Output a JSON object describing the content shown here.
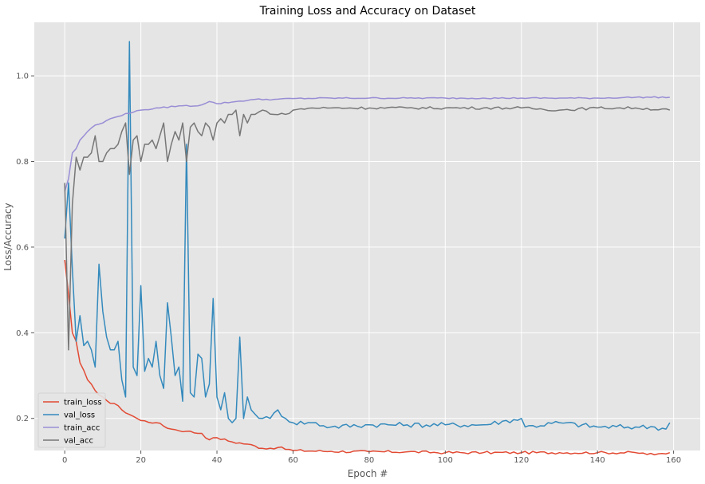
{
  "chart_data": {
    "type": "line",
    "title": "Training Loss and Accuracy on Dataset",
    "xlabel": "Epoch #",
    "ylabel": "Loss/Accuracy",
    "xlim": [
      -8,
      167
    ],
    "ylim": [
      0.125,
      1.125
    ],
    "xticks": [
      0,
      20,
      40,
      60,
      80,
      100,
      120,
      140,
      160
    ],
    "yticks": [
      0.2,
      0.4,
      0.6,
      0.8,
      1.0
    ],
    "xtick_labels": [
      "0",
      "20",
      "40",
      "60",
      "80",
      "100",
      "120",
      "140",
      "160"
    ],
    "ytick_labels": [
      "0.2",
      "0.4",
      "0.6",
      "0.8",
      "1.0"
    ],
    "grid": true,
    "legend_position": "lower-left",
    "background": "#e5e5e5",
    "series": [
      {
        "name": "train_loss",
        "color": "#e24a33",
        "keypoints": [
          [
            0,
            0.57
          ],
          [
            1,
            0.49
          ],
          [
            2,
            0.4
          ],
          [
            3,
            0.38
          ],
          [
            4,
            0.33
          ],
          [
            6,
            0.29
          ],
          [
            8,
            0.265
          ],
          [
            10,
            0.25
          ],
          [
            12,
            0.235
          ],
          [
            14,
            0.23
          ],
          [
            15,
            0.22
          ],
          [
            18,
            0.205
          ],
          [
            20,
            0.195
          ],
          [
            24,
            0.19
          ],
          [
            28,
            0.175
          ],
          [
            32,
            0.17
          ],
          [
            36,
            0.165
          ],
          [
            38,
            0.15
          ],
          [
            40,
            0.155
          ],
          [
            44,
            0.145
          ],
          [
            48,
            0.14
          ],
          [
            52,
            0.13
          ],
          [
            56,
            0.132
          ],
          [
            60,
            0.125
          ],
          [
            70,
            0.123
          ],
          [
            80,
            0.122
          ],
          [
            90,
            0.122
          ],
          [
            100,
            0.12
          ],
          [
            110,
            0.12
          ],
          [
            120,
            0.12
          ],
          [
            130,
            0.12
          ],
          [
            140,
            0.12
          ],
          [
            150,
            0.12
          ],
          [
            155,
            0.115
          ],
          [
            159,
            0.12
          ]
        ]
      },
      {
        "name": "val_loss",
        "color": "#348abd",
        "keypoints": [
          [
            0,
            0.62
          ],
          [
            1,
            0.75
          ],
          [
            2,
            0.55
          ],
          [
            3,
            0.38
          ],
          [
            4,
            0.44
          ],
          [
            5,
            0.37
          ],
          [
            6,
            0.38
          ],
          [
            7,
            0.36
          ],
          [
            8,
            0.32
          ],
          [
            9,
            0.56
          ],
          [
            10,
            0.45
          ],
          [
            11,
            0.39
          ],
          [
            12,
            0.36
          ],
          [
            13,
            0.36
          ],
          [
            14,
            0.38
          ],
          [
            15,
            0.29
          ],
          [
            16,
            0.25
          ],
          [
            17,
            1.08
          ],
          [
            18,
            0.32
          ],
          [
            19,
            0.3
          ],
          [
            20,
            0.51
          ],
          [
            21,
            0.31
          ],
          [
            22,
            0.34
          ],
          [
            23,
            0.32
          ],
          [
            24,
            0.38
          ],
          [
            25,
            0.3
          ],
          [
            26,
            0.27
          ],
          [
            27,
            0.47
          ],
          [
            28,
            0.39
          ],
          [
            29,
            0.3
          ],
          [
            30,
            0.32
          ],
          [
            31,
            0.24
          ],
          [
            32,
            0.84
          ],
          [
            33,
            0.26
          ],
          [
            34,
            0.25
          ],
          [
            35,
            0.35
          ],
          [
            36,
            0.34
          ],
          [
            37,
            0.25
          ],
          [
            38,
            0.28
          ],
          [
            39,
            0.48
          ],
          [
            40,
            0.25
          ],
          [
            41,
            0.22
          ],
          [
            42,
            0.26
          ],
          [
            43,
            0.2
          ],
          [
            44,
            0.19
          ],
          [
            45,
            0.2
          ],
          [
            46,
            0.39
          ],
          [
            47,
            0.2
          ],
          [
            48,
            0.25
          ],
          [
            49,
            0.22
          ],
          [
            50,
            0.21
          ],
          [
            52,
            0.2
          ],
          [
            54,
            0.2
          ],
          [
            56,
            0.22
          ],
          [
            58,
            0.2
          ],
          [
            60,
            0.19
          ],
          [
            65,
            0.19
          ],
          [
            70,
            0.18
          ],
          [
            80,
            0.185
          ],
          [
            90,
            0.185
          ],
          [
            100,
            0.185
          ],
          [
            110,
            0.185
          ],
          [
            120,
            0.2
          ],
          [
            121,
            0.18
          ],
          [
            130,
            0.19
          ],
          [
            140,
            0.18
          ],
          [
            150,
            0.18
          ],
          [
            155,
            0.18
          ],
          [
            158,
            0.175
          ],
          [
            159,
            0.19
          ]
        ]
      },
      {
        "name": "train_acc",
        "color": "#988ed5",
        "keypoints": [
          [
            0,
            0.73
          ],
          [
            1,
            0.76
          ],
          [
            2,
            0.82
          ],
          [
            3,
            0.83
          ],
          [
            4,
            0.85
          ],
          [
            6,
            0.87
          ],
          [
            8,
            0.885
          ],
          [
            10,
            0.89
          ],
          [
            12,
            0.9
          ],
          [
            14,
            0.905
          ],
          [
            16,
            0.912
          ],
          [
            18,
            0.915
          ],
          [
            20,
            0.92
          ],
          [
            25,
            0.925
          ],
          [
            30,
            0.93
          ],
          [
            35,
            0.93
          ],
          [
            38,
            0.94
          ],
          [
            40,
            0.935
          ],
          [
            45,
            0.94
          ],
          [
            50,
            0.945
          ],
          [
            55,
            0.945
          ],
          [
            60,
            0.947
          ],
          [
            70,
            0.948
          ],
          [
            80,
            0.948
          ],
          [
            90,
            0.948
          ],
          [
            100,
            0.948
          ],
          [
            110,
            0.948
          ],
          [
            120,
            0.948
          ],
          [
            130,
            0.948
          ],
          [
            140,
            0.948
          ],
          [
            150,
            0.95
          ],
          [
            159,
            0.95
          ]
        ]
      },
      {
        "name": "val_acc",
        "color": "#777777",
        "keypoints": [
          [
            0,
            0.75
          ],
          [
            1,
            0.36
          ],
          [
            2,
            0.7
          ],
          [
            3,
            0.81
          ],
          [
            4,
            0.78
          ],
          [
            5,
            0.81
          ],
          [
            6,
            0.81
          ],
          [
            7,
            0.82
          ],
          [
            8,
            0.86
          ],
          [
            9,
            0.8
          ],
          [
            10,
            0.8
          ],
          [
            11,
            0.82
          ],
          [
            12,
            0.83
          ],
          [
            13,
            0.83
          ],
          [
            14,
            0.84
          ],
          [
            15,
            0.87
          ],
          [
            16,
            0.89
          ],
          [
            17,
            0.77
          ],
          [
            18,
            0.85
          ],
          [
            19,
            0.86
          ],
          [
            20,
            0.8
          ],
          [
            21,
            0.84
          ],
          [
            22,
            0.84
          ],
          [
            23,
            0.85
          ],
          [
            24,
            0.83
          ],
          [
            25,
            0.86
          ],
          [
            26,
            0.89
          ],
          [
            27,
            0.8
          ],
          [
            28,
            0.84
          ],
          [
            29,
            0.87
          ],
          [
            30,
            0.85
          ],
          [
            31,
            0.89
          ],
          [
            32,
            0.8
          ],
          [
            33,
            0.88
          ],
          [
            34,
            0.89
          ],
          [
            35,
            0.87
          ],
          [
            36,
            0.86
          ],
          [
            37,
            0.89
          ],
          [
            38,
            0.88
          ],
          [
            39,
            0.85
          ],
          [
            40,
            0.89
          ],
          [
            41,
            0.9
          ],
          [
            42,
            0.89
          ],
          [
            43,
            0.91
          ],
          [
            44,
            0.91
          ],
          [
            45,
            0.92
          ],
          [
            46,
            0.86
          ],
          [
            47,
            0.91
          ],
          [
            48,
            0.89
          ],
          [
            49,
            0.91
          ],
          [
            50,
            0.91
          ],
          [
            52,
            0.92
          ],
          [
            55,
            0.91
          ],
          [
            58,
            0.91
          ],
          [
            60,
            0.92
          ],
          [
            65,
            0.925
          ],
          [
            70,
            0.925
          ],
          [
            80,
            0.925
          ],
          [
            90,
            0.925
          ],
          [
            100,
            0.925
          ],
          [
            110,
            0.925
          ],
          [
            120,
            0.925
          ],
          [
            130,
            0.92
          ],
          [
            140,
            0.925
          ],
          [
            150,
            0.925
          ],
          [
            159,
            0.92
          ]
        ]
      }
    ]
  }
}
